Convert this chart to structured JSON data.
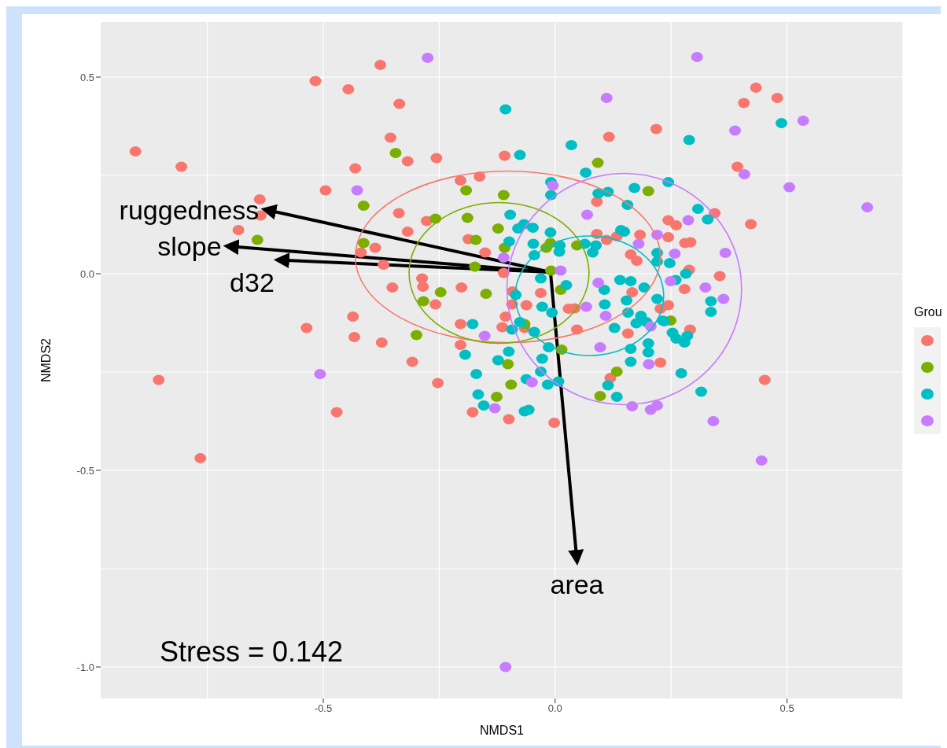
{
  "chart_data": {
    "type": "scatter",
    "xlabel": "NMDS1",
    "ylabel": "NMDS2",
    "legend_title": "Grou",
    "grid": true,
    "marker": "circle",
    "xlim": [
      -0.98,
      0.75
    ],
    "ylim": [
      -1.08,
      0.64
    ],
    "xticks": [
      {
        "value": -0.5,
        "label": "-0.5"
      },
      {
        "value": 0,
        "label": "0.0"
      },
      {
        "value": 0.5,
        "label": "0.5"
      }
    ],
    "yticks": [
      {
        "value": -1,
        "label": "-1.0"
      },
      {
        "value": -0.5,
        "label": "-0.5"
      },
      {
        "value": 0,
        "label": "0.0"
      },
      {
        "value": 0.5,
        "label": "0.5"
      }
    ],
    "annotations": [
      "Stress = 0.142"
    ],
    "series": [
      {
        "color": "#f8766d",
        "x": [
          -0.905,
          -0.806,
          -0.517,
          -0.377,
          -0.446,
          -0.336,
          -0.355,
          -0.318,
          -0.256,
          -0.431,
          -0.495,
          -0.637,
          -0.635,
          -0.683,
          -0.204,
          -0.163,
          -0.109,
          -0.337,
          -0.277,
          -0.318,
          -0.187,
          -0.388,
          -0.419,
          -0.151,
          -0.37,
          -0.287,
          -0.285,
          -0.351,
          -0.202,
          -0.258,
          -0.436,
          -0.204,
          -0.433,
          -0.374,
          -0.204,
          -0.308,
          -0.253,
          -0.471,
          -0.178,
          -0.1,
          -0.002,
          -0.111,
          -0.092,
          -0.093,
          -0.107,
          -0.066,
          -0.114,
          -0.536,
          -0.855,
          -0.765,
          0.218,
          0.116,
          0.09,
          0.09,
          0.111,
          0.133,
          0.183,
          0.244,
          0.261,
          0.244,
          0.163,
          0.176,
          0.166,
          -0.031,
          -0.062,
          0.029,
          0.042,
          0.047,
          0.157,
          0.227,
          0.244,
          0.227,
          0.119,
          0.433,
          0.479,
          0.407,
          0.393,
          0.344,
          0.422,
          0.292,
          0.28,
          0.289,
          0.355,
          0.279,
          0.291,
          0.452
        ],
        "values": [
          0.311,
          0.272,
          0.49,
          0.531,
          0.469,
          0.432,
          0.346,
          0.286,
          0.294,
          0.268,
          0.212,
          0.189,
          0.148,
          0.111,
          0.237,
          0.247,
          0.3,
          0.154,
          0.134,
          0.107,
          0.088,
          0.066,
          0.054,
          0.054,
          0.023,
          -0.012,
          -0.033,
          -0.035,
          -0.035,
          -0.078,
          -0.109,
          -0.128,
          -0.161,
          -0.175,
          -0.181,
          -0.224,
          -0.278,
          -0.352,
          -0.352,
          -0.37,
          -0.379,
          0.002,
          -0.045,
          -0.078,
          -0.109,
          -0.138,
          -0.136,
          -0.138,
          -0.27,
          -0.469,
          0.368,
          0.348,
          0.183,
          0.101,
          0.086,
          0.095,
          0.099,
          0.136,
          0.123,
          0.093,
          0.049,
          0.033,
          -0.047,
          -0.049,
          -0.08,
          -0.089,
          -0.088,
          -0.142,
          -0.152,
          -0.089,
          -0.08,
          -0.226,
          -0.265,
          0.473,
          0.447,
          0.434,
          0.272,
          0.154,
          0.126,
          0.08,
          0.078,
          0.01,
          -0.006,
          -0.039,
          -0.142,
          -0.27
        ]
      },
      {
        "color": "#7cae00",
        "x": [
          -0.344,
          -0.192,
          -0.111,
          -0.413,
          -0.258,
          -0.189,
          -0.123,
          -0.171,
          -0.109,
          -0.413,
          -0.173,
          -0.247,
          -0.149,
          -0.284,
          -0.299,
          -0.102,
          -0.095,
          -0.126,
          0.092,
          0.201,
          -0.01,
          -0.019,
          0.047,
          -0.009,
          0.012,
          0.014,
          0.133,
          0.097,
          -0.066,
          0.249,
          -0.642
        ],
        "values": [
          0.307,
          0.212,
          0.2,
          0.173,
          0.14,
          0.142,
          0.115,
          0.086,
          0.066,
          0.078,
          0.018,
          -0.047,
          -0.051,
          -0.07,
          -0.156,
          -0.23,
          -0.282,
          -0.313,
          0.282,
          0.21,
          0.078,
          0.066,
          0.072,
          0.008,
          -0.041,
          -0.193,
          -0.249,
          -0.311,
          -0.128,
          -0.119,
          0.086
        ]
      },
      {
        "color": "#00bfc4",
        "x": [
          -0.107,
          -0.076,
          0.035,
          0.066,
          -0.009,
          -0.009,
          0.093,
          0.114,
          0.171,
          0.244,
          0.156,
          -0.097,
          -0.067,
          -0.048,
          -0.01,
          -0.099,
          -0.047,
          -0.045,
          0.01,
          0.009,
          0.064,
          0.088,
          0.081,
          0.142,
          0.22,
          0.22,
          -0.031,
          0.024,
          0.14,
          0.163,
          0.192,
          0.106,
          0.107,
          0.154,
          0.157,
          0.185,
          0.22,
          0.232,
          0.175,
          0.197,
          -0.085,
          -0.028,
          -0.007,
          0.128,
          0.261,
          0.163,
          0.201,
          0.201,
          0.163,
          -0.014,
          -0.028,
          -0.1,
          -0.123,
          -0.031,
          0.114,
          0.133,
          -0.016,
          0.007,
          -0.057,
          -0.062,
          -0.045,
          -0.076,
          -0.093,
          0.272,
          0.149,
          -0.08,
          -0.178,
          -0.194,
          -0.17,
          -0.166,
          -0.154,
          -0.066,
          0.289,
          0.488,
          0.308,
          0.329,
          0.247,
          0.282,
          0.26,
          0.336,
          0.336,
          0.235,
          0.253,
          0.279,
          0.285,
          0.315
        ],
        "values": [
          0.418,
          0.302,
          0.327,
          0.257,
          0.233,
          0.2,
          0.204,
          0.208,
          0.218,
          0.233,
          0.175,
          0.15,
          0.126,
          0.117,
          0.105,
          0.082,
          0.076,
          0.047,
          0.072,
          0.056,
          0.076,
          0.072,
          0.054,
          0.111,
          0.053,
          0.031,
          -0.012,
          -0.029,
          -0.016,
          -0.019,
          -0.035,
          -0.041,
          -0.078,
          -0.068,
          -0.099,
          -0.107,
          -0.064,
          -0.119,
          -0.126,
          -0.123,
          -0.054,
          -0.084,
          -0.099,
          -0.138,
          -0.165,
          -0.191,
          -0.177,
          -0.2,
          -0.224,
          -0.187,
          -0.216,
          -0.198,
          -0.22,
          -0.249,
          -0.284,
          -0.313,
          -0.282,
          -0.274,
          -0.346,
          -0.268,
          -0.148,
          -0.123,
          -0.142,
          -0.253,
          0.107,
          0.115,
          -0.128,
          -0.206,
          -0.255,
          -0.307,
          -0.335,
          -0.35,
          0.34,
          0.383,
          0.165,
          0.138,
          0.027,
          0,
          -0.016,
          -0.07,
          -0.097,
          -0.121,
          -0.15,
          -0.175,
          -0.158,
          -0.3
        ]
      },
      {
        "color": "#c77cff",
        "x": [
          -0.275,
          -0.427,
          -0.111,
          -0.152,
          -0.13,
          0.111,
          -0.005,
          0.069,
          0.18,
          0.22,
          0.012,
          0.093,
          0.067,
          0.109,
          0.249,
          0.206,
          0.097,
          0.202,
          -0.05,
          0.166,
          0.206,
          0.22,
          0.306,
          0.388,
          0.535,
          0.408,
          0.505,
          0.673,
          0.287,
          0.258,
          0.367,
          0.324,
          0.363,
          0.341,
          0.445,
          -0.507,
          -0.107
        ],
        "values": [
          0.549,
          0.212,
          0.041,
          -0.158,
          -0.342,
          0.447,
          0.224,
          0.15,
          0.076,
          0.099,
          0.008,
          -0.023,
          -0.084,
          -0.107,
          -0.019,
          -0.134,
          -0.187,
          -0.23,
          -0.276,
          -0.337,
          -0.346,
          -0.335,
          0.551,
          0.364,
          0.389,
          0.253,
          0.22,
          0.169,
          0.136,
          0.051,
          0.053,
          -0.035,
          -0.064,
          -0.375,
          -0.475,
          -0.255,
          -1
        ]
      },
      {
        "type": "line",
        "marker": "none",
        "name": "ruggedness",
        "color": "#000000",
        "x": [
          -0.01,
          -0.625
        ],
        "values": [
          0.004,
          0.163
        ]
      },
      {
        "type": "line",
        "marker": "none",
        "name": "slope",
        "color": "#000000",
        "x": [
          -0.01,
          -0.706
        ],
        "values": [
          0.004,
          0.07
        ]
      },
      {
        "type": "line",
        "marker": "none",
        "name": "d32",
        "color": "#000000",
        "x": [
          -0.01,
          -0.597
        ],
        "values": [
          0.004,
          0.035
        ]
      },
      {
        "type": "line",
        "marker": "none",
        "name": "area",
        "color": "#000000",
        "x": [
          -0.01,
          0.047
        ],
        "values": [
          0.004,
          -0.73
        ]
      }
    ]
  }
}
